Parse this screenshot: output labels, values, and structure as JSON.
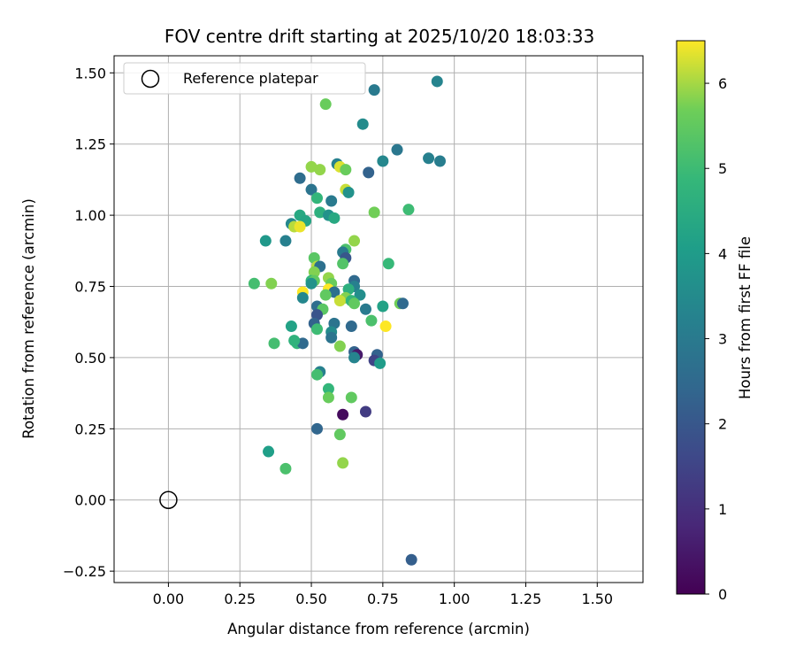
{
  "chart_data": {
    "type": "scatter",
    "title": "FOV centre drift starting at 2025/10/20 18:03:33",
    "xlabel": "Angular distance from reference (arcmin)",
    "ylabel": "Rotation from reference (arcmin)",
    "xlim": [
      -0.19,
      1.66
    ],
    "ylim": [
      -0.29,
      1.56
    ],
    "xticks": [
      0.0,
      0.25,
      0.5,
      0.75,
      1.0,
      1.25,
      1.5
    ],
    "xtick_labels": [
      "0.00",
      "0.25",
      "0.50",
      "0.75",
      "1.00",
      "1.25",
      "1.50"
    ],
    "yticks": [
      -0.25,
      0.0,
      0.25,
      0.5,
      0.75,
      1.0,
      1.25,
      1.5
    ],
    "ytick_labels": [
      "−0.25",
      "0.00",
      "0.25",
      "0.50",
      "0.75",
      "1.00",
      "1.25",
      "1.50"
    ],
    "grid": true,
    "legend": {
      "position": "top-left",
      "entries": [
        "Reference platepar"
      ]
    },
    "reference_point": {
      "x": 0.0,
      "y": 0.0,
      "label": "Reference platepar"
    },
    "colorbar": {
      "label": "Hours from first FF file",
      "min": 0,
      "max": 6.5,
      "ticks": [
        0,
        1,
        2,
        3,
        4,
        5,
        6
      ],
      "tick_labels": [
        "0",
        "1",
        "2",
        "3",
        "4",
        "5",
        "6"
      ],
      "colormap": "viridis"
    },
    "points": [
      {
        "x": 0.94,
        "y": 1.47,
        "h": 3.3
      },
      {
        "x": 0.72,
        "y": 1.44,
        "h": 3.0
      },
      {
        "x": 0.55,
        "y": 1.39,
        "h": 5.6
      },
      {
        "x": 0.68,
        "y": 1.32,
        "h": 3.5
      },
      {
        "x": 0.8,
        "y": 1.23,
        "h": 2.9
      },
      {
        "x": 0.91,
        "y": 1.2,
        "h": 3.2
      },
      {
        "x": 0.95,
        "y": 1.19,
        "h": 3.1
      },
      {
        "x": 0.75,
        "y": 1.19,
        "h": 3.4
      },
      {
        "x": 0.59,
        "y": 1.18,
        "h": 3.2
      },
      {
        "x": 0.5,
        "y": 1.17,
        "h": 5.9
      },
      {
        "x": 0.53,
        "y": 1.16,
        "h": 5.9
      },
      {
        "x": 0.6,
        "y": 1.17,
        "h": 6.3
      },
      {
        "x": 0.62,
        "y": 1.16,
        "h": 5.6
      },
      {
        "x": 0.7,
        "y": 1.15,
        "h": 2.3
      },
      {
        "x": 0.46,
        "y": 1.13,
        "h": 2.6
      },
      {
        "x": 0.5,
        "y": 1.09,
        "h": 2.8
      },
      {
        "x": 0.62,
        "y": 1.09,
        "h": 6.2
      },
      {
        "x": 0.63,
        "y": 1.08,
        "h": 3.7
      },
      {
        "x": 0.52,
        "y": 1.06,
        "h": 4.8
      },
      {
        "x": 0.57,
        "y": 1.05,
        "h": 3.0
      },
      {
        "x": 0.84,
        "y": 1.02,
        "h": 5.0
      },
      {
        "x": 0.72,
        "y": 1.01,
        "h": 5.7
      },
      {
        "x": 0.53,
        "y": 1.01,
        "h": 4.6
      },
      {
        "x": 0.56,
        "y": 1.0,
        "h": 3.7
      },
      {
        "x": 0.58,
        "y": 0.99,
        "h": 4.4
      },
      {
        "x": 0.46,
        "y": 1.0,
        "h": 4.4
      },
      {
        "x": 0.48,
        "y": 0.98,
        "h": 4.3
      },
      {
        "x": 0.43,
        "y": 0.97,
        "h": 3.4
      },
      {
        "x": 0.44,
        "y": 0.96,
        "h": 6.1
      },
      {
        "x": 0.46,
        "y": 0.96,
        "h": 6.4
      },
      {
        "x": 0.34,
        "y": 0.91,
        "h": 3.9
      },
      {
        "x": 0.41,
        "y": 0.91,
        "h": 3.2
      },
      {
        "x": 0.65,
        "y": 0.91,
        "h": 5.9
      },
      {
        "x": 0.62,
        "y": 0.88,
        "h": 5.2
      },
      {
        "x": 0.61,
        "y": 0.87,
        "h": 3.0
      },
      {
        "x": 0.62,
        "y": 0.85,
        "h": 2.0
      },
      {
        "x": 0.51,
        "y": 0.85,
        "h": 5.4
      },
      {
        "x": 0.61,
        "y": 0.83,
        "h": 5.3
      },
      {
        "x": 0.77,
        "y": 0.83,
        "h": 4.9
      },
      {
        "x": 0.52,
        "y": 0.82,
        "h": 6.1
      },
      {
        "x": 0.53,
        "y": 0.82,
        "h": 2.7
      },
      {
        "x": 0.51,
        "y": 0.8,
        "h": 5.8
      },
      {
        "x": 0.56,
        "y": 0.78,
        "h": 5.9
      },
      {
        "x": 0.5,
        "y": 0.77,
        "h": 4.8
      },
      {
        "x": 0.51,
        "y": 0.77,
        "h": 5.5
      },
      {
        "x": 0.57,
        "y": 0.76,
        "h": 5.6
      },
      {
        "x": 0.3,
        "y": 0.76,
        "h": 5.1
      },
      {
        "x": 0.36,
        "y": 0.76,
        "h": 5.8
      },
      {
        "x": 0.65,
        "y": 0.77,
        "h": 2.5
      },
      {
        "x": 0.5,
        "y": 0.76,
        "h": 3.7
      },
      {
        "x": 0.65,
        "y": 0.75,
        "h": 3.2
      },
      {
        "x": 0.56,
        "y": 0.74,
        "h": 6.5
      },
      {
        "x": 0.47,
        "y": 0.73,
        "h": 6.5
      },
      {
        "x": 0.58,
        "y": 0.73,
        "h": 2.7
      },
      {
        "x": 0.63,
        "y": 0.74,
        "h": 4.6
      },
      {
        "x": 0.67,
        "y": 0.72,
        "h": 3.6
      },
      {
        "x": 0.55,
        "y": 0.72,
        "h": 5.5
      },
      {
        "x": 0.47,
        "y": 0.71,
        "h": 3.4
      },
      {
        "x": 0.62,
        "y": 0.71,
        "h": 5.8
      },
      {
        "x": 0.6,
        "y": 0.7,
        "h": 6.2
      },
      {
        "x": 0.64,
        "y": 0.7,
        "h": 4.8
      },
      {
        "x": 0.65,
        "y": 0.69,
        "h": 5.5
      },
      {
        "x": 0.81,
        "y": 0.69,
        "h": 5.7
      },
      {
        "x": 0.82,
        "y": 0.69,
        "h": 2.5
      },
      {
        "x": 0.52,
        "y": 0.68,
        "h": 2.6
      },
      {
        "x": 0.75,
        "y": 0.68,
        "h": 4.2
      },
      {
        "x": 0.69,
        "y": 0.67,
        "h": 3.0
      },
      {
        "x": 0.54,
        "y": 0.67,
        "h": 5.4
      },
      {
        "x": 0.52,
        "y": 0.65,
        "h": 1.9
      },
      {
        "x": 0.58,
        "y": 0.62,
        "h": 2.8
      },
      {
        "x": 0.51,
        "y": 0.62,
        "h": 2.3
      },
      {
        "x": 0.71,
        "y": 0.63,
        "h": 5.2
      },
      {
        "x": 0.43,
        "y": 0.61,
        "h": 4.2
      },
      {
        "x": 0.64,
        "y": 0.61,
        "h": 2.5
      },
      {
        "x": 0.76,
        "y": 0.61,
        "h": 6.5
      },
      {
        "x": 0.52,
        "y": 0.6,
        "h": 5.0
      },
      {
        "x": 0.57,
        "y": 0.59,
        "h": 3.5
      },
      {
        "x": 0.57,
        "y": 0.57,
        "h": 2.8
      },
      {
        "x": 0.37,
        "y": 0.55,
        "h": 5.1
      },
      {
        "x": 0.45,
        "y": 0.55,
        "h": 4.8
      },
      {
        "x": 0.47,
        "y": 0.55,
        "h": 2.5
      },
      {
        "x": 0.44,
        "y": 0.56,
        "h": 4.7
      },
      {
        "x": 0.6,
        "y": 0.54,
        "h": 5.8
      },
      {
        "x": 0.65,
        "y": 0.52,
        "h": 2.3
      },
      {
        "x": 0.66,
        "y": 0.51,
        "h": 0.5
      },
      {
        "x": 0.73,
        "y": 0.51,
        "h": 2.3
      },
      {
        "x": 0.72,
        "y": 0.49,
        "h": 1.5
      },
      {
        "x": 0.65,
        "y": 0.5,
        "h": 3.3
      },
      {
        "x": 0.74,
        "y": 0.48,
        "h": 4.0
      },
      {
        "x": 0.53,
        "y": 0.45,
        "h": 3.2
      },
      {
        "x": 0.52,
        "y": 0.44,
        "h": 5.1
      },
      {
        "x": 0.56,
        "y": 0.39,
        "h": 4.8
      },
      {
        "x": 0.64,
        "y": 0.36,
        "h": 5.5
      },
      {
        "x": 0.56,
        "y": 0.36,
        "h": 5.6
      },
      {
        "x": 0.69,
        "y": 0.31,
        "h": 1.3
      },
      {
        "x": 0.61,
        "y": 0.3,
        "h": 0.2
      },
      {
        "x": 0.52,
        "y": 0.25,
        "h": 2.4
      },
      {
        "x": 0.6,
        "y": 0.23,
        "h": 5.5
      },
      {
        "x": 0.35,
        "y": 0.17,
        "h": 4.1
      },
      {
        "x": 0.61,
        "y": 0.13,
        "h": 5.9
      },
      {
        "x": 0.41,
        "y": 0.11,
        "h": 5.2
      },
      {
        "x": 0.85,
        "y": -0.21,
        "h": 2.2
      }
    ]
  }
}
